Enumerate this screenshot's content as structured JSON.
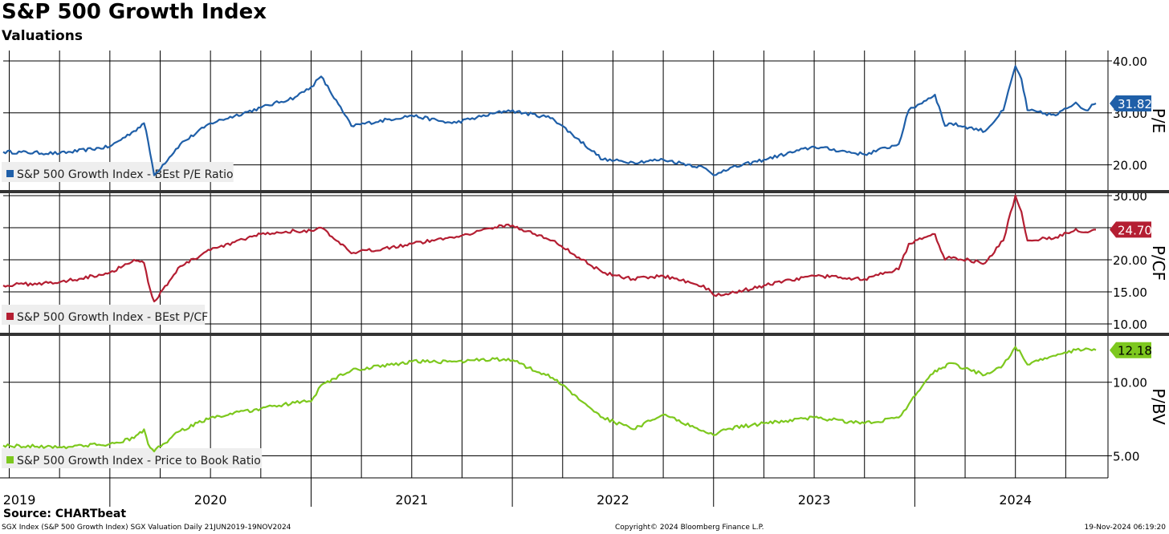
{
  "title": "S&P 500 Growth Index",
  "subtitle": "Valuations",
  "source": "Source: CHARTbeat",
  "footer": {
    "left": "SGX Index (S&P 500 Growth Index) SGX Valuation  Daily 21JUN2019-19NOV2024",
    "center": "Copyright© 2024 Bloomberg Finance L.P.",
    "right": "19-Nov-2024 06:19:20"
  },
  "colors": {
    "pe": "#1f5fa8",
    "pcf": "#b41e32",
    "pbv": "#7dc81e",
    "grid": "#000000"
  },
  "chart_data": [
    {
      "type": "line",
      "ylabel": "P/E",
      "ylim": [
        15,
        42
      ],
      "ticks": [
        "20.00",
        "30.00",
        "40.00"
      ],
      "tick_values": [
        20,
        30,
        40
      ],
      "last_value_label": "31.82",
      "last_value": 31.82,
      "legend": "S&P 500 Growth Index - BEst P/E Ratio",
      "x": [
        2019.47,
        2019.75,
        2020.0,
        2020.12,
        2020.17,
        2020.19,
        2020.22,
        2020.35,
        2020.5,
        2020.75,
        2020.92,
        2021.0,
        2021.05,
        2021.2,
        2021.5,
        2021.7,
        2021.98,
        2022.2,
        2022.45,
        2022.6,
        2022.75,
        2022.95,
        2023.0,
        2023.05,
        2023.25,
        2023.5,
        2023.75,
        2023.92,
        2023.97,
        2024.1,
        2024.15,
        2024.17,
        2024.35,
        2024.44,
        2024.5,
        2024.53,
        2024.56,
        2024.7,
        2024.8,
        2024.85,
        2024.9
      ],
      "y": [
        22.5,
        22.2,
        23.5,
        26.5,
        28.0,
        24.5,
        18.0,
        24.0,
        28.0,
        31.0,
        33.0,
        35.0,
        37.0,
        27.5,
        29.5,
        28.0,
        30.5,
        29.0,
        21.0,
        20.5,
        21.0,
        19.5,
        18.0,
        19.0,
        21.0,
        23.5,
        22.0,
        24.0,
        30.5,
        33.5,
        27.5,
        28.0,
        26.5,
        30.5,
        39.0,
        36.5,
        30.5,
        29.5,
        32.0,
        30.5,
        31.82
      ]
    },
    {
      "type": "line",
      "ylabel": "P/CF",
      "ylim": [
        8.5,
        30.5
      ],
      "ticks": [
        "10.00",
        "15.00",
        "20.00",
        "25.00",
        "30.00"
      ],
      "tick_values": [
        10,
        15,
        20,
        25,
        30
      ],
      "last_value_label": "24.70",
      "last_value": 24.7,
      "legend": "S&P 500 Growth Index - BEst P/CF",
      "x": [
        2019.47,
        2019.75,
        2020.0,
        2020.12,
        2020.17,
        2020.19,
        2020.22,
        2020.35,
        2020.5,
        2020.75,
        2020.92,
        2021.0,
        2021.05,
        2021.2,
        2021.5,
        2021.7,
        2021.98,
        2022.2,
        2022.45,
        2022.6,
        2022.75,
        2022.95,
        2023.0,
        2023.05,
        2023.25,
        2023.5,
        2023.75,
        2023.92,
        2023.97,
        2024.1,
        2024.15,
        2024.17,
        2024.35,
        2024.44,
        2024.5,
        2024.53,
        2024.56,
        2024.7,
        2024.8,
        2024.85,
        2024.9
      ],
      "y": [
        16.0,
        16.5,
        18.0,
        20.0,
        19.5,
        16.5,
        13.5,
        19.0,
        21.5,
        24.0,
        24.5,
        24.5,
        25.0,
        21.0,
        22.5,
        23.5,
        25.5,
        23.0,
        18.0,
        17.0,
        17.5,
        16.0,
        14.5,
        14.5,
        16.0,
        17.5,
        17.0,
        18.5,
        22.5,
        24.0,
        20.0,
        20.5,
        19.5,
        23.0,
        30.0,
        27.5,
        23.0,
        23.5,
        24.8,
        24.3,
        24.7
      ]
    },
    {
      "type": "line",
      "ylabel": "P/BV",
      "ylim": [
        3.5,
        13.2
      ],
      "ticks": [
        "5.00",
        "10.00"
      ],
      "tick_values": [
        5,
        10
      ],
      "last_value_label": "12.18",
      "last_value": 12.18,
      "legend": "S&P 500 Growth Index - Price to Book Ratio",
      "x": [
        2019.47,
        2019.75,
        2020.0,
        2020.12,
        2020.17,
        2020.19,
        2020.22,
        2020.35,
        2020.5,
        2020.75,
        2020.92,
        2021.0,
        2021.05,
        2021.2,
        2021.5,
        2021.7,
        2021.98,
        2022.2,
        2022.45,
        2022.6,
        2022.75,
        2022.95,
        2023.0,
        2023.05,
        2023.25,
        2023.5,
        2023.75,
        2023.92,
        2023.97,
        2024.1,
        2024.15,
        2024.17,
        2024.35,
        2024.44,
        2024.5,
        2024.53,
        2024.56,
        2024.7,
        2024.8,
        2024.85,
        2024.9
      ],
      "y": [
        5.7,
        5.6,
        5.8,
        6.2,
        6.8,
        5.8,
        5.3,
        6.7,
        7.6,
        8.2,
        8.6,
        8.7,
        9.8,
        10.8,
        11.4,
        11.4,
        11.6,
        10.3,
        7.6,
        6.8,
        7.8,
        6.7,
        6.4,
        6.8,
        7.2,
        7.6,
        7.2,
        7.6,
        8.5,
        10.8,
        11.0,
        11.3,
        10.5,
        11.2,
        12.4,
        11.9,
        11.2,
        11.8,
        12.2,
        12.3,
        12.18
      ]
    }
  ],
  "x_axis": {
    "labels": [
      "2019",
      "2020",
      "2021",
      "2022",
      "2023",
      "2024"
    ],
    "label_positions": [
      2019.55,
      2020.5,
      2021.5,
      2022.5,
      2023.5,
      2024.5
    ],
    "year_boundaries": [
      2020.0,
      2021.0,
      2022.0,
      2023.0,
      2024.0
    ],
    "xlim": [
      2019.47,
      2024.96
    ]
  }
}
